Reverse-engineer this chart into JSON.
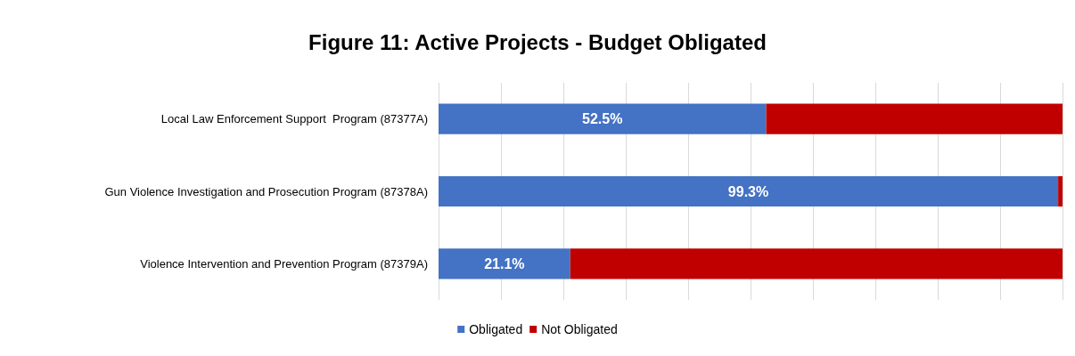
{
  "chart_data": {
    "type": "bar",
    "orientation": "horizontal",
    "stacked": true,
    "title": "Figure 11: Active Projects - Budget Obligated",
    "categories": [
      "Local Law Enforcement Support  Program (87377A)",
      "Gun Violence Investigation and Prosecution Program (87378A)",
      "Violence Intervention and Prevention Program (87379A)"
    ],
    "series": [
      {
        "name": "Obligated",
        "color": "#4472c4",
        "values": [
          52.5,
          99.3,
          21.1
        ],
        "value_labels": [
          "52.5%",
          "99.3%",
          "21.1%"
        ]
      },
      {
        "name": "Not Obligated",
        "color": "#c00000",
        "values": [
          47.5,
          0.7,
          78.9
        ]
      }
    ],
    "xlim": [
      0,
      100
    ],
    "xticks": [
      {
        "value": 0,
        "label": null
      },
      {
        "value": 10,
        "label": null
      },
      {
        "value": 20,
        "label": null
      },
      {
        "value": 30,
        "label": null
      },
      {
        "value": 40,
        "label": null
      },
      {
        "value": 50,
        "label": null
      },
      {
        "value": 60,
        "label": null
      },
      {
        "value": 70,
        "label": null
      },
      {
        "value": 80,
        "label": null
      },
      {
        "value": 90,
        "label": null
      },
      {
        "value": 100,
        "label": null
      }
    ],
    "tick_labels": "y",
    "grid": "x",
    "legend": "bottom"
  }
}
